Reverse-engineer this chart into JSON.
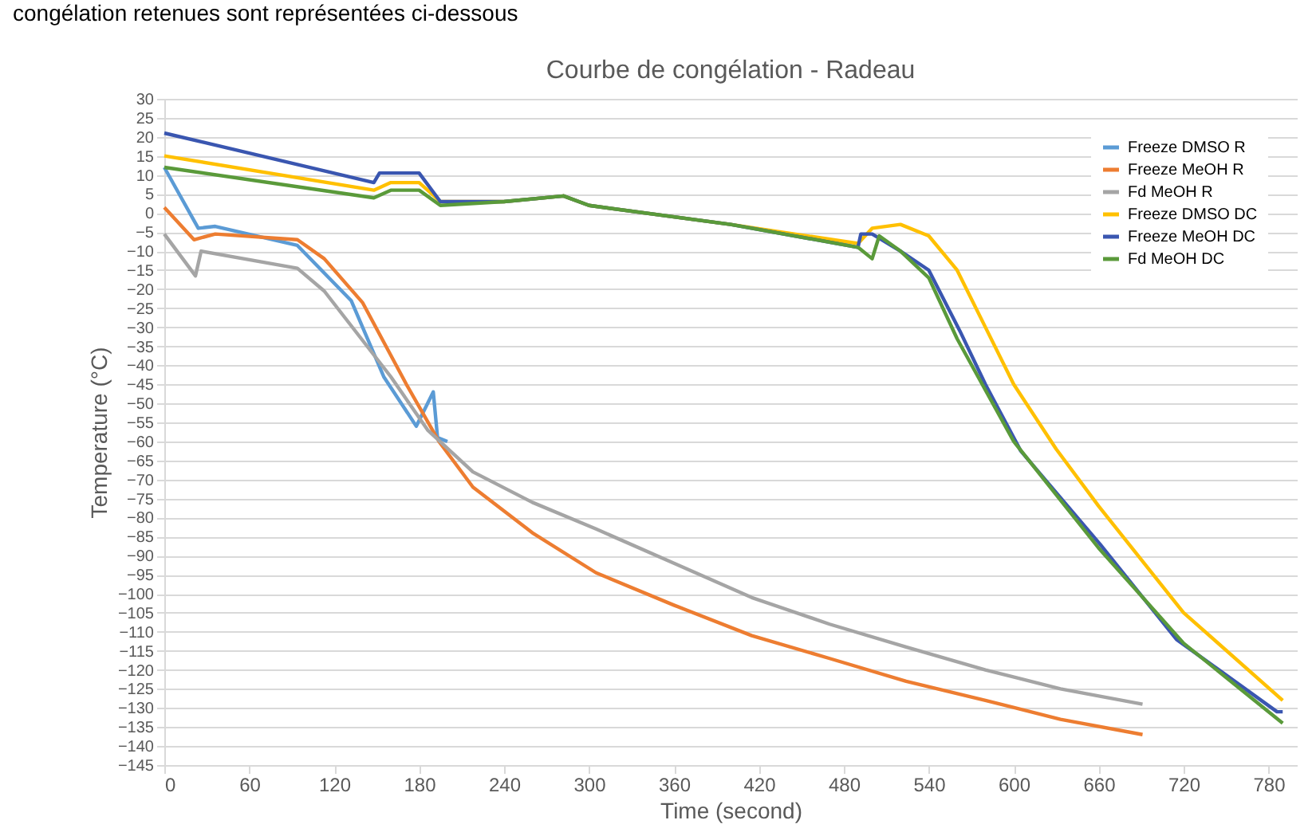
{
  "chart_data": {
    "type": "line",
    "title": "Courbe de congélation - Radeau",
    "xlabel": "Time (second)",
    "ylabel": "Temperature (°C)",
    "annotations": [
      "congélation retenues sont représentées ci-dessous"
    ],
    "xlim": [
      0,
      800
    ],
    "xticks": [
      0,
      60,
      120,
      180,
      240,
      300,
      360,
      420,
      480,
      540,
      600,
      660,
      720,
      780
    ],
    "ylim": [
      -145,
      30
    ],
    "yticks": [
      30,
      25,
      20,
      15,
      10,
      5,
      0,
      -5,
      -10,
      -15,
      -20,
      -25,
      -30,
      -35,
      -40,
      -45,
      -50,
      -55,
      -60,
      -65,
      -70,
      -75,
      -80,
      -85,
      -90,
      -95,
      -100,
      -105,
      -110,
      -115,
      -120,
      -125,
      -130,
      -135,
      -140,
      -145
    ],
    "grid": "y",
    "legend": "top right",
    "marker": "none",
    "line_style": "solid",
    "series": [
      {
        "name": "Freeze DMSO R",
        "color": "#5b9bd5",
        "x": [
          0,
          24,
          36,
          94,
          132,
          155,
          178,
          190,
          193,
          200
        ],
        "values": [
          12,
          -4,
          -3.5,
          -8.5,
          -23,
          -43,
          -56,
          -47,
          -59,
          -60
        ]
      },
      {
        "name": "Freeze MeOH R",
        "color": "#ed7d31",
        "x": [
          0,
          21,
          36,
          94,
          113,
          140,
          171,
          194,
          218,
          260,
          305,
          360,
          415,
          470,
          524,
          580,
          633,
          691
        ],
        "values": [
          1.5,
          -7,
          -5.5,
          -7,
          -12,
          -23.5,
          -45,
          -60,
          -72,
          -84,
          -94.5,
          -103,
          -111,
          -117,
          -123,
          -128,
          -133,
          -137
        ]
      },
      {
        "name": "Fd MeOH R",
        "color": "#a5a5a5",
        "x": [
          0,
          22,
          26,
          94,
          113,
          160,
          186,
          218,
          260,
          305,
          360,
          415,
          470,
          524,
          580,
          633,
          691
        ],
        "values": [
          -5.5,
          -16.5,
          -10,
          -14.5,
          -20.5,
          -43,
          -57,
          -68,
          -76,
          -83,
          -92,
          -101,
          -108,
          -114,
          -120,
          -125,
          -129
        ]
      },
      {
        "name": "Freeze DMSO DC",
        "color": "#ffc000",
        "x": [
          0,
          148,
          160,
          180,
          195,
          240,
          282,
          300,
          400,
          490,
          500,
          520,
          540,
          560,
          580,
          600,
          630,
          660,
          720,
          790
        ],
        "values": [
          15,
          6,
          8,
          8,
          3,
          3,
          4.5,
          2,
          -3,
          -8,
          -4,
          -3,
          -6,
          -15,
          -30,
          -45,
          -62,
          -77,
          -105,
          -128
        ]
      },
      {
        "name": "Freeze MeOH DC",
        "color": "#3a56b0",
        "x": [
          0,
          148,
          152,
          180,
          195,
          240,
          282,
          300,
          400,
          490,
          492,
          500,
          520,
          540,
          562,
          580,
          605,
          661,
          715,
          786,
          790
        ],
        "values": [
          21,
          8,
          10.5,
          10.5,
          3,
          3,
          4.5,
          2,
          -3,
          -9,
          -5.5,
          -5.5,
          -10,
          -15,
          -31,
          -45,
          -62.5,
          -87,
          -112,
          -131,
          -131
        ]
      },
      {
        "name": "Fd MeOH DC",
        "color": "#5a9a3a",
        "x": [
          0,
          148,
          160,
          180,
          195,
          240,
          282,
          300,
          400,
          490,
          500,
          505,
          520,
          540,
          560,
          600,
          660,
          720,
          790
        ],
        "values": [
          12,
          4,
          6,
          6,
          2,
          3,
          4.5,
          2,
          -3,
          -9,
          -12,
          -6,
          -10,
          -17,
          -33,
          -60,
          -88,
          -113,
          -134
        ]
      }
    ]
  }
}
